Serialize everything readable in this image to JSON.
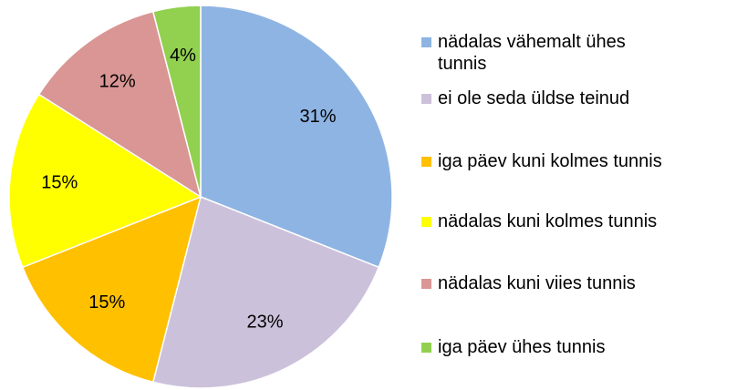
{
  "chart_data": {
    "type": "pie",
    "categories": [
      "nädalas vähemalt ühes tunnis",
      "ei ole seda üldse teinud",
      "iga päev kuni kolmes tunnis",
      "nädalas kuni kolmes tunnis",
      "nädalas kuni viies tunnis",
      "iga päev ühes tunnis"
    ],
    "values": [
      31,
      23,
      15,
      15,
      12,
      4
    ],
    "value_labels": [
      "31%",
      "23%",
      "15%",
      "15%",
      "12%",
      "4%"
    ],
    "colors": [
      "#8eb4e3",
      "#ccc1da",
      "#ffc000",
      "#ffff00",
      "#d99694",
      "#92d050"
    ],
    "legend": "right"
  }
}
